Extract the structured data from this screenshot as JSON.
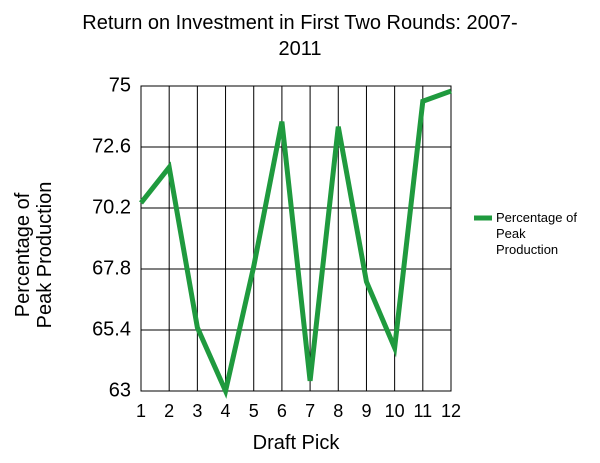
{
  "chart_data": {
    "type": "line",
    "title": "Return on Investment in First Two Rounds: 2007-2011",
    "x_label": "Draft Pick",
    "y_label": "Percentage of Peak Production",
    "x": [
      1,
      2,
      3,
      4,
      5,
      6,
      7,
      8,
      9,
      10,
      11,
      12
    ],
    "series": [
      {
        "name": "Percentage of Peak Production",
        "color": "#1f9a3e",
        "values": [
          70.4,
          71.8,
          65.5,
          63.0,
          67.9,
          73.6,
          63.4,
          73.4,
          67.3,
          64.7,
          74.4,
          74.8
        ]
      }
    ],
    "xlim": [
      1,
      12
    ],
    "xticks": [
      1,
      2,
      3,
      4,
      5,
      6,
      7,
      8,
      9,
      10,
      11,
      12
    ],
    "ylim": [
      63,
      75
    ],
    "yticks": [
      63,
      65.4,
      67.8,
      70.2,
      72.6,
      75
    ],
    "grid": true,
    "legend": "right"
  }
}
